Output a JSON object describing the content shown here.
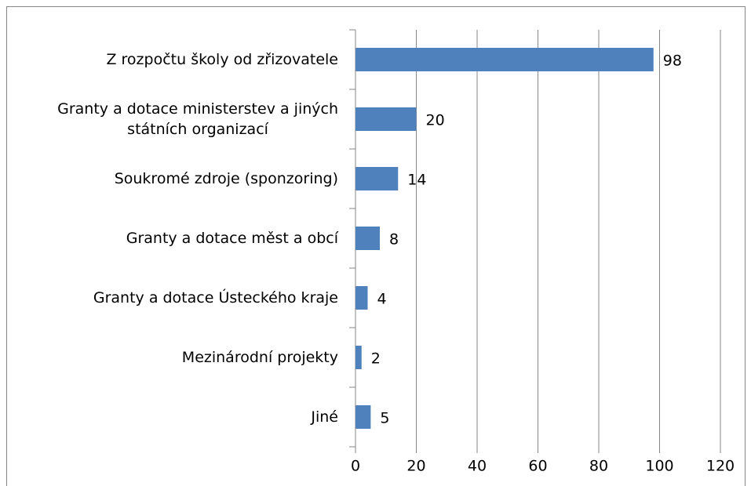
{
  "chart_data": {
    "type": "bar",
    "orientation": "horizontal",
    "categories": [
      "Z rozpočtu školy od zřizovatele",
      "Granty a dotace ministerstev a jiných státních organizací",
      "Soukromé zdroje (sponzoring)",
      "Granty a dotace měst a obcí",
      "Granty a dotace Ústeckého kraje",
      "Mezinárodní projekty",
      "Jiné"
    ],
    "values": [
      98,
      20,
      14,
      8,
      4,
      2,
      5
    ],
    "color": "#4f81bd",
    "xlim": [
      0,
      120
    ],
    "xticks": [
      0,
      20,
      40,
      60,
      80,
      100,
      120
    ],
    "grid": true
  }
}
